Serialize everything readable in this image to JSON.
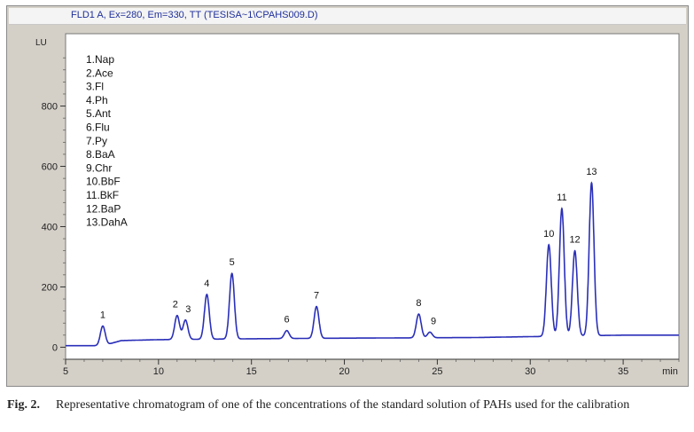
{
  "chart_data": {
    "type": "line",
    "title": "FLD1 A, Ex=280, Em=330, TT (TESISA~1\\CPAHS009.D)",
    "ylabel": "LU",
    "xlabel": "min",
    "xlim": [
      5,
      38
    ],
    "ylim": [
      -40,
      1040
    ],
    "x_ticks": [
      5,
      10,
      15,
      20,
      25,
      30,
      35
    ],
    "y_ticks": [
      0,
      200,
      400,
      600,
      800
    ],
    "legend": [
      "1.Nap",
      "2.Ace",
      "3.Fl",
      "4.Ph",
      "5.Ant",
      "6.Flu",
      "7.Py",
      "8.BaA",
      "9.Chr",
      "10.BbF",
      "11.BkF",
      "12.BaP",
      "13.DahA"
    ],
    "legend_position": "top-left",
    "grid": false,
    "baseline": [
      [
        5,
        5
      ],
      [
        7,
        5
      ],
      [
        8,
        22
      ],
      [
        10,
        25
      ],
      [
        15,
        28
      ],
      [
        20,
        30
      ],
      [
        27,
        32
      ],
      [
        30,
        35
      ],
      [
        35,
        40
      ],
      [
        38,
        40
      ]
    ],
    "peaks": [
      {
        "label": "1",
        "rt": 7.0,
        "height": 70
      },
      {
        "label": "2",
        "rt": 11.0,
        "height": 105
      },
      {
        "label": "3",
        "rt": 11.45,
        "height": 90
      },
      {
        "label": "4",
        "rt": 12.6,
        "height": 175
      },
      {
        "label": "5",
        "rt": 13.95,
        "height": 245
      },
      {
        "label": "6",
        "rt": 16.9,
        "height": 55
      },
      {
        "label": "7",
        "rt": 18.5,
        "height": 135
      },
      {
        "label": "8",
        "rt": 24.0,
        "height": 110
      },
      {
        "label": "9",
        "rt": 24.6,
        "height": 50
      },
      {
        "label": "10",
        "rt": 31.0,
        "height": 340
      },
      {
        "label": "11",
        "rt": 31.7,
        "height": 460
      },
      {
        "label": "12",
        "rt": 32.4,
        "height": 320
      },
      {
        "label": "13",
        "rt": 33.3,
        "height": 545
      }
    ]
  },
  "caption": {
    "label": "Fig. 2.",
    "text": "Representative chromatogram of one of the concentrations of the standard solution of PAHs used for the calibration"
  }
}
